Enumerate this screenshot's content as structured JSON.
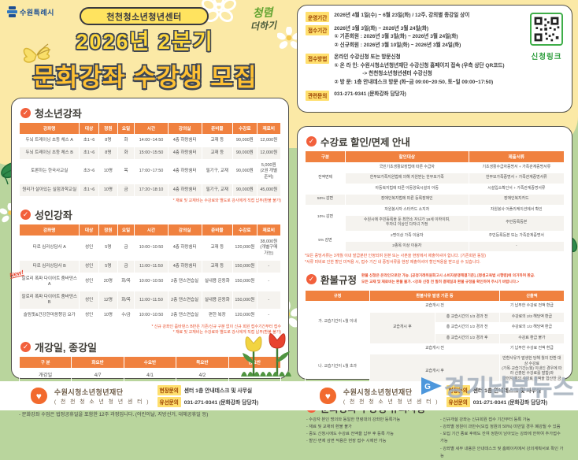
{
  "header": {
    "city": "수원특례시",
    "center_badge": "천천청소년청년센터",
    "title_line1": "2026년 2분기",
    "title_line2": "문화강좌 수강생 모집",
    "integrity_logo": {
      "line1": "청렴",
      "line2": "더하기"
    }
  },
  "info": {
    "operation_label": "운영기간",
    "operation_text": "2026년 4월 1일(수) ~ 6월 23일(화) / 12주, 강의별 종강일 상이",
    "apply_label": "접수기간",
    "apply_lines": [
      "2026년 3월 3일(화) ~ 2026년 3월 24일(화)",
      "① 기존회원 : 2026년 3월 3일(화) ~ 2026년 3월 24일(화)",
      "② 신규회원 : 2026년 3월 10일(화) ~ 2026년 3월 24일(화)"
    ],
    "method_label": "접수방법",
    "method_lines": [
      "온라인 수강신청 또는 방문신청",
      "① 온 라 인: 수원시청소년청년재단 수강신청 홈페이지 접속 (우측 상단 QR코드)",
      "-> 천천청소년청년센터 수강신청",
      "② 방    문: 1층 안내데스크 방문 (화~금 09:00~20:50, 토~일 09:00~17:50)"
    ],
    "contact_label": "관련문의",
    "contact_text": "031-271-9341 (문화강좌 담당자)",
    "qr_label": "신청링크"
  },
  "sections": {
    "youth_title": "청소년강좌",
    "adult_title": "성인강좌",
    "schedule_title": "개강일, 종강일",
    "discount_title": "수강료 할인/면제 안내",
    "refund_title": "환불규정",
    "notice_title": "문화강좌 수강생 유의사항"
  },
  "tables": {
    "youth": {
      "headers": [
        "강좌명",
        "대상",
        "정원",
        "요일",
        "시간",
        "강의실",
        "준비물",
        "수강료",
        "재료비"
      ],
      "rows": [
        [
          "두뇌 트레이닝 초등 체스 A",
          "초1~6",
          "8명",
          "화",
          "14:00~14:50",
          "4층 하랑쉼터",
          "교재 등",
          "90,000원",
          "12,000원"
        ],
        [
          "두뇌 트레이닝 초등 체스 B",
          "초1~6",
          "8명",
          "화",
          "15:00~15:50",
          "4층 하랑쉼터",
          "교재 등",
          "90,000원",
          "12,000원"
        ],
        [
          "토론하는 한국사교실",
          "초3~6",
          "10명",
          "목",
          "17:00~17:50",
          "4층 하랑쉼터",
          "필기구, 교재",
          "90,000원",
          "5,000원\n(2권 개별준비)"
        ],
        [
          "원리가 살아있는 실험과학교실",
          "초1~6",
          "10명",
          "금",
          "17:20~18:10",
          "4층 하랑쉼터",
          "필기구, 교재",
          "90,000원",
          "45,000원"
        ]
      ]
    },
    "adult": {
      "headers": [
        "강좌명",
        "대상",
        "정원",
        "요일",
        "시간",
        "강의실",
        "준비물",
        "수강료",
        "재료비"
      ],
      "rows": [
        [
          "타로 심리상담사 A",
          "성인",
          "5명",
          "금",
          "10:00~10:50",
          "4층 하랑쉼터",
          "교재 등",
          "120,000원",
          "38,000원\n(개별구매 가능)"
        ],
        [
          "타로 심리상담사 B",
          "성인",
          "5명",
          "금",
          "11:00~11:50",
          "4층 하랑쉼터",
          "교재 등",
          "150,000원",
          "-"
        ],
        [
          "칼로리 폭파 다이어트 줌바댄스 A",
          "성인",
          "20명",
          "화/목",
          "10:00~10:50",
          "2층 댄스연습실",
          "실내용 운동화",
          "150,000원",
          "-"
        ],
        [
          "칼로리 폭파 다이어트 줌바댄스 B",
          "성인",
          "12명",
          "화/목",
          "11:00~11:50",
          "2층 댄스연습실",
          "실내용 운동화",
          "150,000원",
          "-"
        ],
        [
          "슬림핏&건강한마음챙김 요가",
          "성인",
          "10명",
          "수/금",
          "10:00~10:50",
          "2층 댄스연습실",
          "편한 복장",
          "120,000원",
          "-"
        ]
      ]
    },
    "schedule": {
      "headers": [
        "구 분",
        "화요반",
        "수요반",
        "목요반",
        "금요반"
      ],
      "rows": [
        [
          "개강일",
          "4/7",
          "4/1",
          "4/2",
          "4/3"
        ],
        [
          "종강일",
          "6/23",
          "6/17",
          "6/18",
          "6/19"
        ]
      ]
    },
    "discount": {
      "headers": [
        "구분",
        "할인대상",
        "제출서류"
      ],
      "rows": [
        [
          {
            "t": "전액면제",
            "rs": 3
          },
          "국민기초생활보장법에 따른 수급자",
          "기초생활수급자증명서 + 가족관계증명서류"
        ],
        [
          "한부모가족지원법에 의해 지원받는 한부모가족",
          "한부모가족증명서 + 가족관계증명서류"
        ],
        [
          "아동복지법에 따른 아동양육시설의 아동",
          "시설입소확인서 + 가족관계증명서류"
        ],
        [
          "50% 감면",
          "장애인복지법에 따른 등록장애인",
          "장애인복지카드"
        ],
        [
          {
            "t": "10% 감면",
            "rs": 2
          },
          "자원봉사자 스타카드 소지자",
          "자원봉사 어플리케이션에서 확인"
        ],
        [
          "수원시에 주민등록을 둔 최연소 자녀가 18세 이하이며,\n두자녀 이상인 다자녀 가정",
          "주민등록등본"
        ],
        [
          {
            "t": "5% 감면",
            "rs": 2
          },
          "2명이상 가족 이용자",
          "주민등록등본 또는 가족관계증명서"
        ],
        [
          "2종목 이상 이용자",
          "-"
        ]
      ]
    },
    "refund": {
      "headers": [
        "규정",
        {
          "t": "환불사유 발생 기준 등",
          "cs": 2
        },
        "산출액"
      ],
      "rows": [
        [
          {
            "t": "가. 교습기간이 1월 이내",
            "rs": 4
          },
          {
            "t": "교습개시 전",
            "cs": 2
          },
          "기 납부한 수강료 전액 환급"
        ],
        [
          {
            "t": "교습개시 후",
            "rs": 3
          },
          "총 교습시간의 1/3 경과 전",
          "수강료의 2/3 해당액 환급"
        ],
        [
          "총 교습시간의 1/2 경과 전",
          "수강료의 1/2 해당액 환급"
        ],
        [
          "총 교습시간의 1/2 경과 후",
          "수강료 환급 불가"
        ],
        [
          {
            "t": "나. 교습기간이 1월 초과",
            "rs": 2
          },
          {
            "t": "교습개시 전",
            "cs": 2
          },
          "기 납부한 수강료 전액 환급"
        ],
        [
          {
            "t": "교습개시 후",
            "cs": 2
          },
          "반환사유가 발생한 당해 월의 반환 대상 수강료\n(가목·교습기간(1월) 이내인 경우에 따라 산출된 수강료를 말함)와\n나머지 월의 수강료 전액을 합산한 금액"
        ]
      ]
    }
  },
  "footnotes": {
    "youth": "* 재료 및 교재비는 수강료와 별도로 강사에게 직접 납부(환불 불가)",
    "adult1": "* 신규 강좌인 줌바댄스 B반은 기존/신규 구분 없이 신규 회원 접수기간부터 접수",
    "adult2": "* 재료 및 교재비는 수강료와 별도로 강사에게 직접 납부(환불 불가)",
    "schedule_notes": [
      "- 상기일정(종강일 등)은 강좌별 운영상황에 따라 달라질 수 있습니다.",
      "- 문화강좌 수업은 법정공휴일을 포함한 12주 과정입니다. (어린이날, 지방선거, 대체공휴일 등)"
    ],
    "discount1": "*모든 증빙서류는 3개월 이내 발급분만 인정되며 원본 또는 사본을 현장에서 제출하셔야 합니다. (기존회원 동일)",
    "discount2": "*서류 미비로 인한 할인 미적용 시, 접수 기간 내 증빙서류를 현장 제출하셔야 할인적용을 받으실 수 있습니다.",
    "refund_intro1": "환불 신청은 온라인으로만 가능. [공정거래위원회고시 소비자분쟁해결기준], [평생교육법 시행령]에 의거하여 환급.",
    "refund_intro2": "모든 교재 및 재료비는 환불 불가. <강좌 신청 전 필히 결제일과 환불 규정을 확인하여 주시기 바랍니다.>",
    "refund_note": "*총 교습시간은 교육기간 중의 총 교습시간을 말하며 반환금액의 산정은 반환사유가 발생한 날까지 경과된 교습시간을 기준으로 함. (1개월 = 4주)",
    "new_badge": "New!"
  },
  "notices": {
    "left": [
      "- 수강자 본인 명의와 동일한 연령대의 강좌만 등록가능",
      "- 재료 및 교재비 환불 불가",
      "- 중도 신청시에도 수강료 전액을 납부 후 등록 가능",
      "- 할인·면제 감면 적용은 현장 접수 시에만 가능"
    ],
    "right": [
      "- 신규개설 강좌는 신규회원 접수 기간부터 등록 가능",
      "- 강좌별 정원이 과반수(모집 정원의 50%) 미만일 경우 폐강될 수 있음",
      "- 모집 기간 종료 후에도 잔여 정원이 남아있는 강좌에 한하여 추가접수 가능",
      "- 강좌별 세부 내용은 안내데스크 및 홈페이지에서 강의계획서로 확인 가능"
    ]
  },
  "footer": {
    "org": "수원시청소년청년재단",
    "org_sub": "( 천 천 청 소 년 청 년 센 터 )",
    "onsite_label": "현장문의",
    "onsite_text": "센터 1층 안내데스크 및 사무실",
    "phone_label": "유선문의",
    "phone_text": "031-271-9341 (문화강좌 담당자)"
  },
  "watermark": "경기남부뉴스",
  "colors": {
    "table_header": "#f0813f",
    "yellow_band": "#fbe9a6",
    "green_band": "#b9d59d",
    "qr_green": "#3fae49",
    "footnote_red": "#e8502e"
  }
}
